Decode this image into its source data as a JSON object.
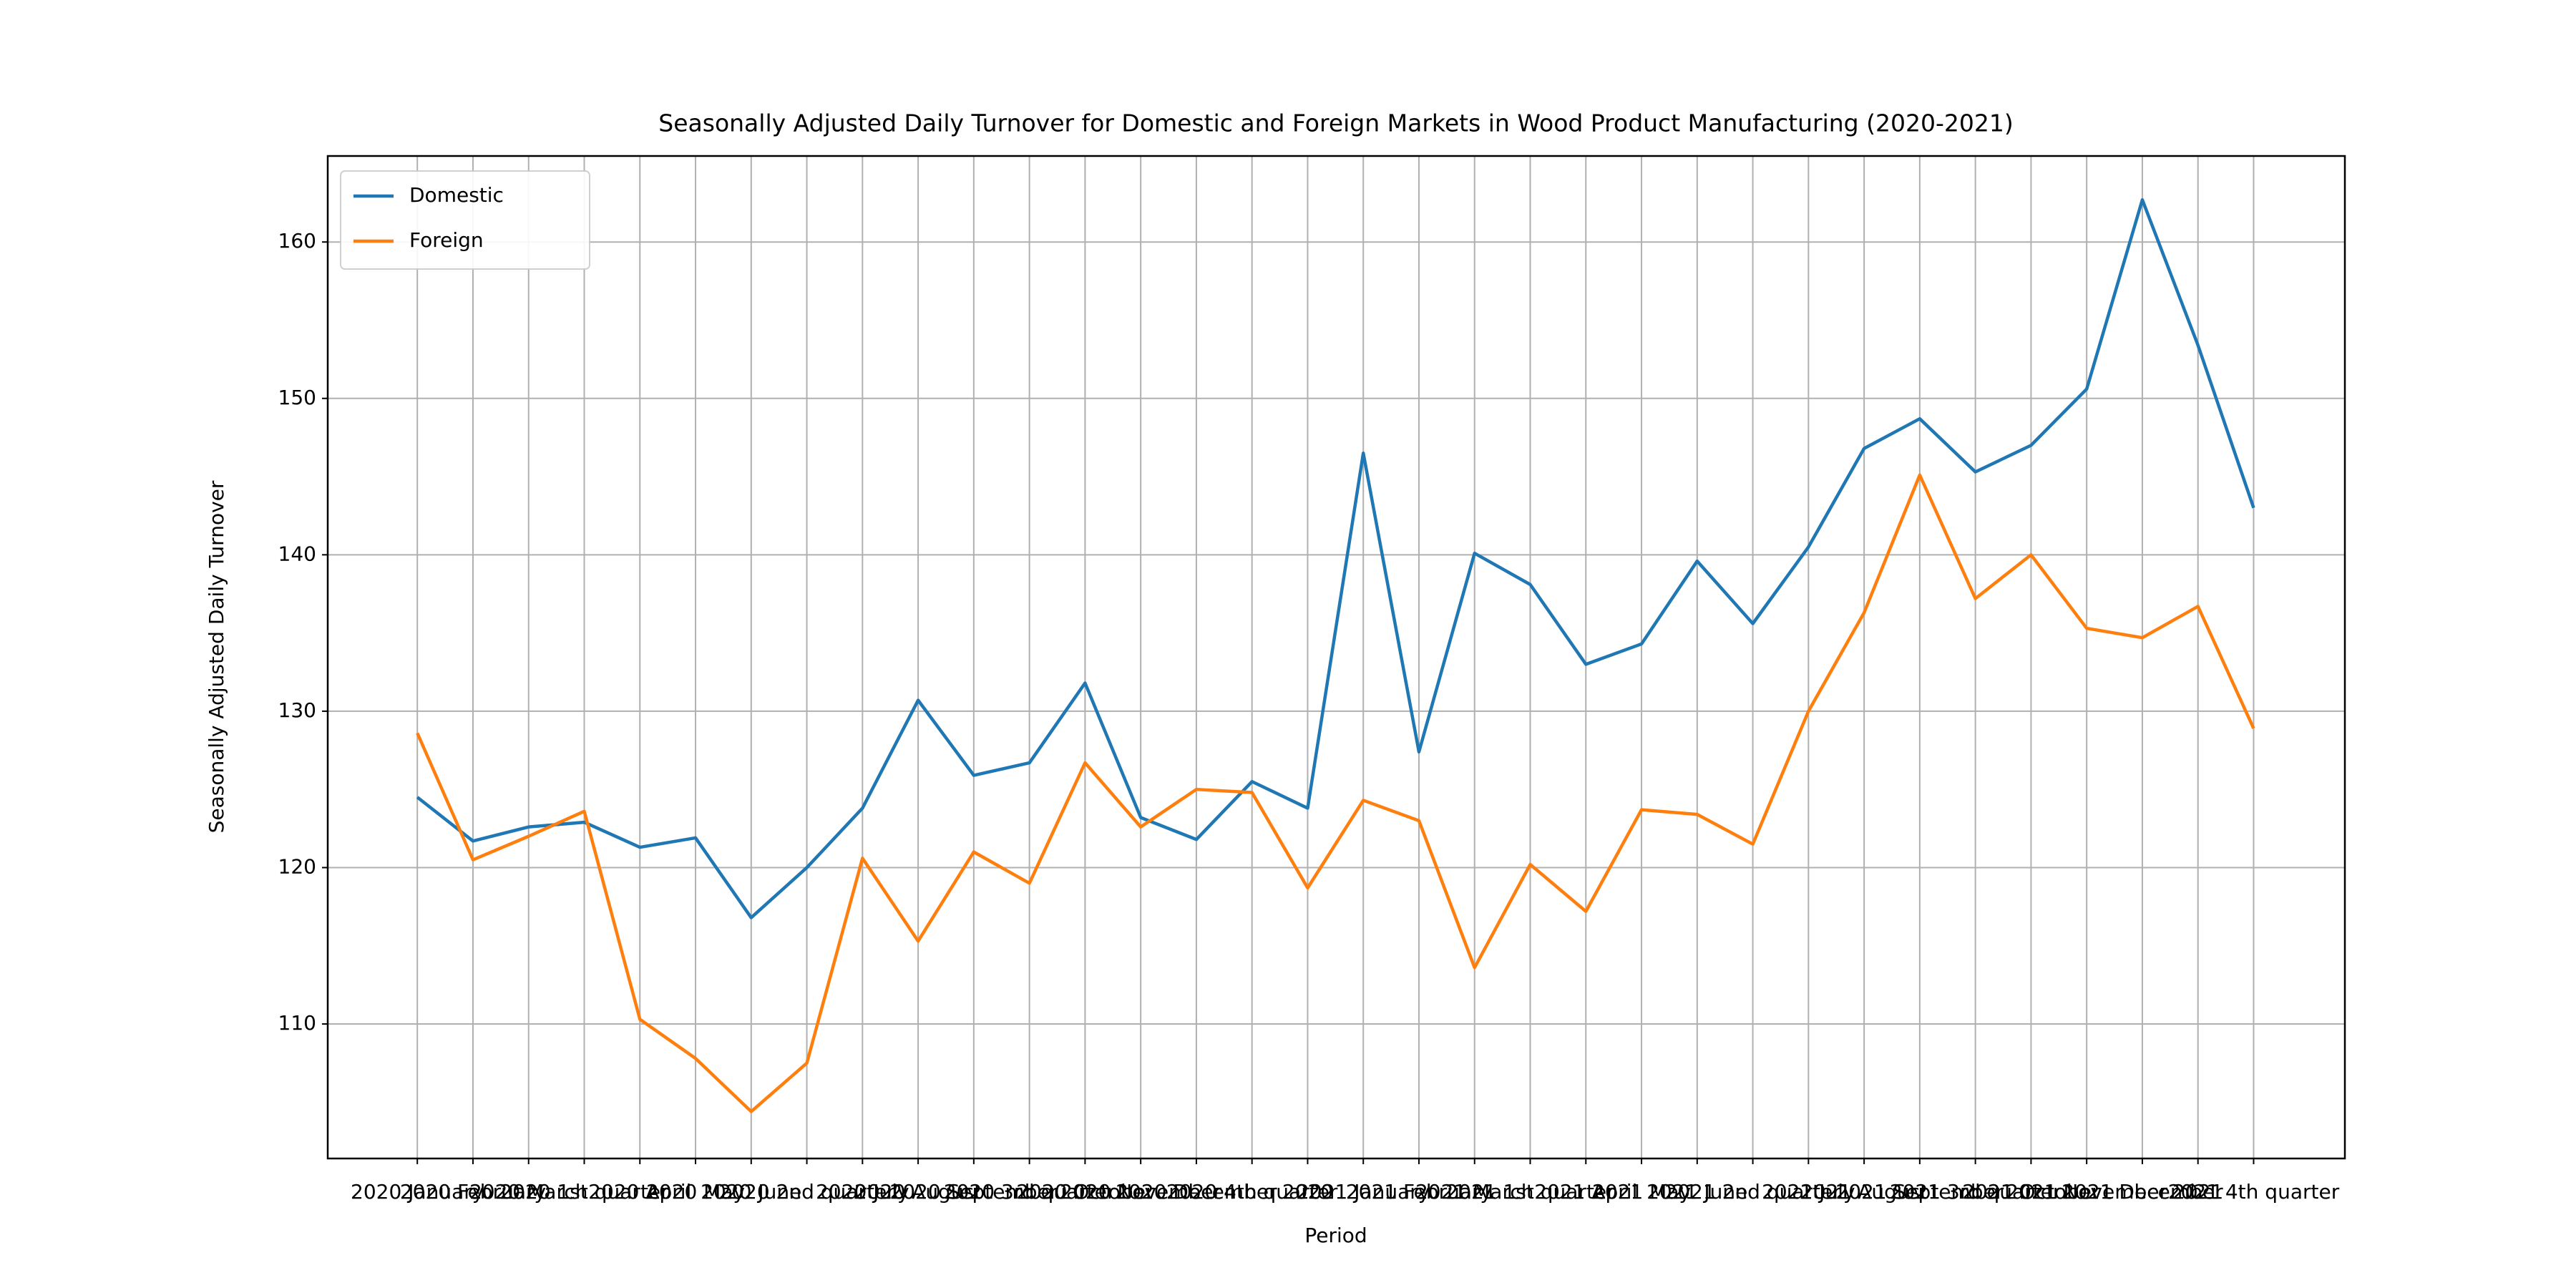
{
  "chart_data": {
    "type": "line",
    "title": "Seasonally Adjusted Daily Turnover for Domestic and Foreign Markets in Wood Product Manufacturing (2020-2021)",
    "x_label": "Period",
    "y_label": "Seasonally Adjusted Daily Turnover",
    "categories": [
      "2020 January",
      "2020 February",
      "2020 March",
      "2020 1st quarter",
      "2020 April",
      "2020 May",
      "2020 June",
      "2020 2nd quarter",
      "2020 July",
      "2020 August",
      "2020 September",
      "2020 3rd quarter",
      "2020 October",
      "2020 November",
      "2020 December",
      "2020 4th quarter",
      "2020",
      "2021 January",
      "2021 February",
      "2021 March",
      "2021 1st quarter",
      "2021 April",
      "2021 May",
      "2021 June",
      "2021 2nd quarter",
      "2021 July",
      "2021 August",
      "2021 September",
      "2021 3rd quarter",
      "2021 October",
      "2021 November",
      "2021 December",
      "2021",
      "2021 4th quarter"
    ],
    "series": [
      {
        "name": "Domestic",
        "color": "#1f77b4",
        "values": [
          124.5,
          121.7,
          122.6,
          122.9,
          121.3,
          121.9,
          116.8,
          120.0,
          123.8,
          130.7,
          125.9,
          126.7,
          131.8,
          123.2,
          121.8,
          125.5,
          123.8,
          146.5,
          127.4,
          140.1,
          138.1,
          133.0,
          134.3,
          139.6,
          135.6,
          140.5,
          146.8,
          148.7,
          145.3,
          147.0,
          150.6,
          162.7,
          153.4,
          143.0
        ]
      },
      {
        "name": "Foreign",
        "color": "#ff7f0e",
        "values": [
          128.6,
          120.5,
          122.0,
          123.6,
          110.3,
          107.8,
          104.4,
          107.5,
          120.6,
          115.3,
          121.0,
          119.0,
          126.7,
          122.6,
          125.0,
          124.8,
          118.7,
          124.3,
          123.0,
          113.6,
          120.2,
          117.2,
          123.7,
          123.4,
          121.5,
          130.0,
          136.3,
          145.1,
          137.2,
          140.0,
          135.3,
          134.7,
          136.7,
          128.9
        ]
      }
    ],
    "ylim": [
      101.4,
      165.5
    ],
    "yticks": [
      110,
      120,
      130,
      140,
      150,
      160
    ],
    "grid": true,
    "legend": "upper left"
  }
}
